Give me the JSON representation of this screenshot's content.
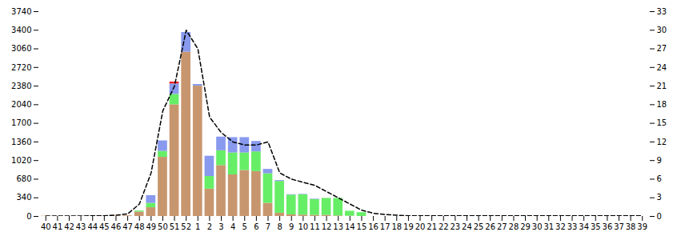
{
  "chart_data": {
    "type": "bar",
    "stacked": true,
    "categories": [
      "40",
      "41",
      "42",
      "43",
      "44",
      "45",
      "46",
      "47",
      "48",
      "49",
      "50",
      "51",
      "52",
      "1",
      "2",
      "3",
      "4",
      "5",
      "6",
      "7",
      "8",
      "9",
      "10",
      "11",
      "12",
      "13",
      "14",
      "15",
      "16",
      "17",
      "18",
      "19",
      "20",
      "21",
      "22",
      "23",
      "24",
      "25",
      "26",
      "27",
      "28",
      "29",
      "30",
      "31",
      "32",
      "33",
      "34",
      "35",
      "36",
      "37",
      "38",
      "39"
    ],
    "series": [
      {
        "color": "#C8966E",
        "values": [
          5,
          3,
          3,
          3,
          5,
          5,
          8,
          12,
          80,
          160,
          1080,
          2040,
          3000,
          2380,
          500,
          930,
          760,
          840,
          820,
          240,
          60,
          30,
          25,
          20,
          20,
          10,
          5,
          0,
          0,
          0,
          0,
          0,
          0,
          0,
          0,
          0,
          0,
          0,
          0,
          0,
          0,
          0,
          0,
          0,
          0,
          0,
          0,
          0,
          0,
          0,
          0,
          0
        ]
      },
      {
        "color": "#66EE66",
        "values": [
          0,
          0,
          0,
          0,
          0,
          0,
          0,
          0,
          20,
          80,
          110,
          190,
          0,
          0,
          230,
          270,
          400,
          320,
          360,
          540,
          580,
          360,
          370,
          290,
          310,
          320,
          90,
          70,
          0,
          0,
          0,
          0,
          0,
          0,
          0,
          0,
          0,
          0,
          0,
          0,
          0,
          0,
          0,
          0,
          0,
          0,
          0,
          0,
          0,
          0,
          0,
          0
        ]
      },
      {
        "color": "#8899EE",
        "values": [
          0,
          0,
          0,
          0,
          0,
          0,
          0,
          0,
          0,
          140,
          190,
          190,
          360,
          30,
          370,
          250,
          280,
          280,
          190,
          80,
          15,
          8,
          8,
          8,
          0,
          0,
          0,
          0,
          0,
          0,
          0,
          0,
          0,
          0,
          0,
          0,
          0,
          0,
          0,
          0,
          0,
          0,
          0,
          0,
          0,
          0,
          0,
          0,
          0,
          0,
          0,
          0
        ]
      },
      {
        "color": "#EE2222",
        "values": [
          0,
          0,
          0,
          0,
          0,
          0,
          0,
          0,
          0,
          0,
          0,
          35,
          0,
          0,
          0,
          0,
          0,
          0,
          0,
          0,
          0,
          0,
          0,
          0,
          0,
          0,
          0,
          0,
          0,
          0,
          0,
          0,
          0,
          0,
          0,
          0,
          0,
          0,
          0,
          0,
          0,
          0,
          0,
          0,
          0,
          0,
          0,
          0,
          0,
          0,
          0,
          0
        ]
      },
      {
        "type": "line",
        "axis": "y2",
        "color": "black",
        "line_style": "dashed",
        "values": [
          0.05,
          0.05,
          0.05,
          0.05,
          0.1,
          0.1,
          0.2,
          0.4,
          2.0,
          7,
          17,
          21,
          30,
          27,
          16,
          13.5,
          12,
          11.5,
          11.5,
          12,
          7,
          6,
          5.5,
          5,
          4,
          3,
          2,
          1,
          0.5,
          0.3,
          0.2,
          0.1,
          0.1,
          0.1,
          0.1,
          0.1,
          0.1,
          0.1,
          0.1,
          0.1,
          0.1,
          0.1,
          0.1,
          0.1,
          0.1,
          0.1,
          0.1,
          0.1,
          0.1,
          0.1,
          0.1,
          0.1
        ]
      }
    ],
    "ylim": [
      0,
      3740
    ],
    "yticks": [
      0,
      340,
      680,
      1020,
      1360,
      1700,
      2040,
      2380,
      2720,
      3060,
      3400,
      3740
    ],
    "y2lim": [
      0,
      33
    ],
    "y2ticks": [
      0,
      3,
      6,
      9,
      12,
      15,
      18,
      21,
      24,
      27,
      30,
      33
    ]
  }
}
